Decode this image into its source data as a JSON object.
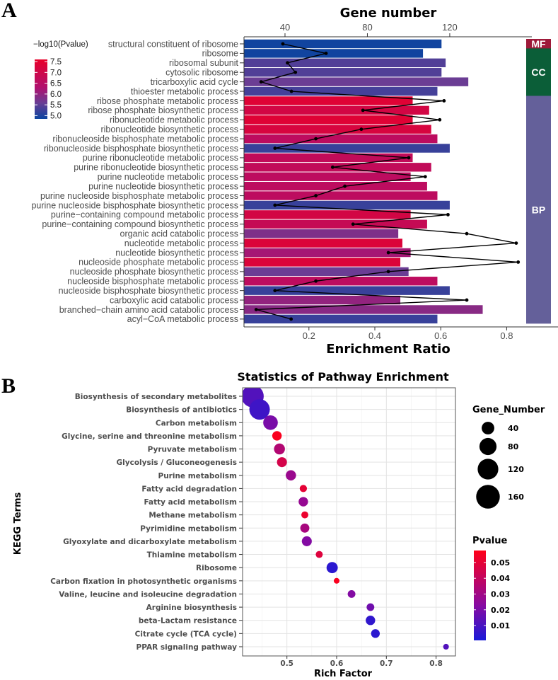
{
  "chart_data": [
    {
      "panel": "A",
      "type": "bar",
      "orientation": "horizontal",
      "top_axis_title": "Gene number",
      "xlabel": "Enrichment Ratio",
      "top_axis_ticks": [
        "40",
        "80",
        "120"
      ],
      "bottom_axis_ticks": [
        "0.2",
        "0.4",
        "0.6",
        "0.8"
      ],
      "top_axis_range": [
        20,
        175
      ],
      "bottom_axis_range": [
        0,
        0.84
      ],
      "color_legend_title": "−log10(Pvalue)",
      "color_legend_ticks": [
        "7.5",
        "7.0",
        "6.5",
        "6.0",
        "5.5",
        "5.0"
      ],
      "color_range": [
        4.85,
        7.6
      ],
      "colors": {
        "low": "#0b45a0",
        "mid_low": "#6a3d94",
        "mid_high": "#b0106e",
        "high": "#e8002a"
      },
      "categories": [
        "structural constituent of ribosome",
        "ribosome",
        "ribosomal subunit",
        "cytosolic ribosome",
        "tricarboxylic acid cycle",
        "thioester metabolic process",
        "ribose phosphate metabolic process",
        "ribose phosphate biosynthetic process",
        "ribonucleotide metabolic process",
        "ribonucleotide biosynthetic process",
        "ribonucleoside bisphosphate metabolic process",
        "ribonucleoside bisphosphate biosynthetic process",
        "purine ribonucleotide metabolic process",
        "purine ribonucleotide biosynthetic process",
        "purine nucleotide metabolic process",
        "purine nucleotide biosynthetic process",
        "purine nucleoside bisphosphate metabolic process",
        "purine nucleoside bisphosphate biosynthetic process",
        "purine−containing compound metabolic process",
        "purine−containing compound biosynthetic process",
        "organic acid catabolic process",
        "nucleotide metabolic process",
        "nucleotide biosynthetic process",
        "nucleoside phosphate metabolic process",
        "nucleoside phosphate biosynthetic process",
        "nucleoside bisphosphate metabolic process",
        "nucleoside bisphosphate biosynthetic process",
        "carboxylic acid catabolic process",
        "branched−chain amino acid catabolic process",
        "acyl−CoA metabolic process"
      ],
      "gene_number": [
        116,
        107,
        118,
        116,
        129,
        114,
        102,
        110,
        102,
        111,
        114,
        120,
        102,
        111,
        101,
        109,
        114,
        120,
        101,
        109,
        95,
        97,
        101,
        96,
        100,
        114,
        120,
        96,
        136,
        114
      ],
      "enrichment_ratio": [
        0.121,
        0.252,
        0.135,
        0.159,
        0.055,
        0.147,
        0.61,
        0.364,
        0.597,
        0.359,
        0.221,
        0.097,
        0.503,
        0.272,
        0.553,
        0.309,
        0.221,
        0.097,
        0.622,
        0.334,
        0.679,
        0.829,
        0.441,
        0.835,
        0.441,
        0.221,
        0.097,
        0.679,
        0.04,
        0.146
      ],
      "neg_log10_pvalue": [
        4.9,
        4.9,
        5.4,
        5.4,
        5.6,
        5.3,
        7.4,
        7.1,
        7.4,
        7.2,
        6.6,
        5.2,
        6.7,
        6.7,
        6.6,
        6.6,
        6.6,
        5.2,
        7.1,
        6.8,
        5.8,
        7.3,
        6.2,
        7.3,
        5.6,
        6.6,
        5.2,
        6.0,
        5.9,
        5.2
      ],
      "categories_groups": [
        {
          "label": "MF",
          "count": 1,
          "color": "#9e1a3a"
        },
        {
          "label": "CC",
          "count": 5,
          "color": "#0b5e38"
        },
        {
          "label": "BP",
          "count": 24,
          "color": "#64609a"
        }
      ]
    },
    {
      "panel": "B",
      "type": "scatter",
      "title": "Statistics of Pathway Enrichment",
      "xlabel": "Rich Factor",
      "ylabel": "KEGG Terms",
      "xlim": [
        0.411,
        0.839
      ],
      "x_ticks": [
        "0.5",
        "0.6",
        "0.7",
        "0.8"
      ],
      "grid": true,
      "size_legend_title": "Gene_Number",
      "size_legend_values": [
        "40",
        "80",
        "120",
        "160"
      ],
      "color_legend_title": "Pvalue",
      "color_legend_ticks": [
        "0.05",
        "0.04",
        "0.03",
        "0.02",
        "0.01"
      ],
      "color_range": [
        0.0006,
        0.0576
      ],
      "colors": {
        "low": "#1a1ad8",
        "mid": "#8a0aa0",
        "high": "#ff0018"
      },
      "legend_position": "right",
      "categories": [
        "Biosynthesis of secondary metabolites",
        "Biosynthesis of antibiotics",
        "Carbon metabolism",
        "Glycine, serine and threonine metabolism",
        "Pyruvate metabolism",
        "Glycolysis / Gluconeogenesis",
        "Purine metabolism",
        "Fatty acid degradation",
        "Fatty acid metabolism",
        "Methane metabolism",
        "Pyrimidine metabolism",
        "Glyoxylate and dicarboxylate metabolism",
        "Thiamine metabolism",
        "Ribosome",
        "Carbon fixation in photosynthetic organisms",
        "Valine, leucine and isoleucine degradation",
        "Arginine biosynthesis",
        "beta-Lactam resistance",
        "Citrate cycle (TCA cycle)",
        "PPAR signaling pathway"
      ],
      "rich_factor": [
        0.431,
        0.445,
        0.467,
        0.48,
        0.485,
        0.49,
        0.508,
        0.533,
        0.533,
        0.536,
        0.536,
        0.54,
        0.565,
        0.591,
        0.6,
        0.63,
        0.668,
        0.668,
        0.678,
        0.82
      ],
      "gene_number": [
        140,
        118,
        56,
        19,
        28,
        22,
        24,
        8,
        19,
        7,
        17,
        22,
        7,
        30,
        2,
        10,
        10,
        19,
        15,
        2
      ],
      "pvalue": [
        0.012,
        0.008,
        0.02,
        0.056,
        0.035,
        0.045,
        0.028,
        0.05,
        0.027,
        0.052,
        0.032,
        0.022,
        0.048,
        0.004,
        0.056,
        0.022,
        0.018,
        0.005,
        0.004,
        0.012
      ]
    }
  ],
  "panel_labels": {
    "a": "A",
    "b": "B"
  }
}
